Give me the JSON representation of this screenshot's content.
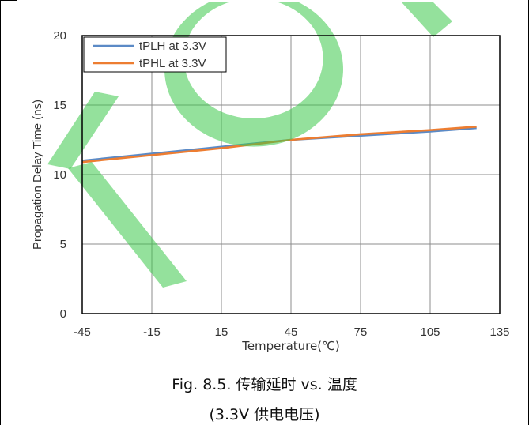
{
  "caption": {
    "line1": "Fig. 8.5. 传输延时 vs. 温度",
    "line2": "(3.3V 供电电压)"
  },
  "watermark": {
    "color": "#3cc84a",
    "opacity": 0.55
  },
  "chart_data": {
    "type": "line",
    "xlabel": "Temperature(℃)",
    "ylabel": "Propagation Delay Time (ns)",
    "xlim": [
      -45,
      135
    ],
    "ylim": [
      0,
      20
    ],
    "xticks": [
      -45,
      -15,
      15,
      45,
      75,
      105,
      135
    ],
    "yticks": [
      0,
      5,
      10,
      15,
      20
    ],
    "grid": true,
    "legend_position": "top-left",
    "series": [
      {
        "name": "tPLH at 3.3V",
        "color": "#5b8ac6",
        "x": [
          -45,
          -15,
          15,
          45,
          75,
          105,
          125
        ],
        "y": [
          11.0,
          11.5,
          12.0,
          12.5,
          12.8,
          13.1,
          13.35
        ]
      },
      {
        "name": "tPHL at 3.3V",
        "color": "#ed7d31",
        "x": [
          -45,
          -15,
          15,
          45,
          75,
          105,
          125
        ],
        "y": [
          10.9,
          11.4,
          11.9,
          12.5,
          12.9,
          13.2,
          13.45
        ]
      }
    ]
  }
}
